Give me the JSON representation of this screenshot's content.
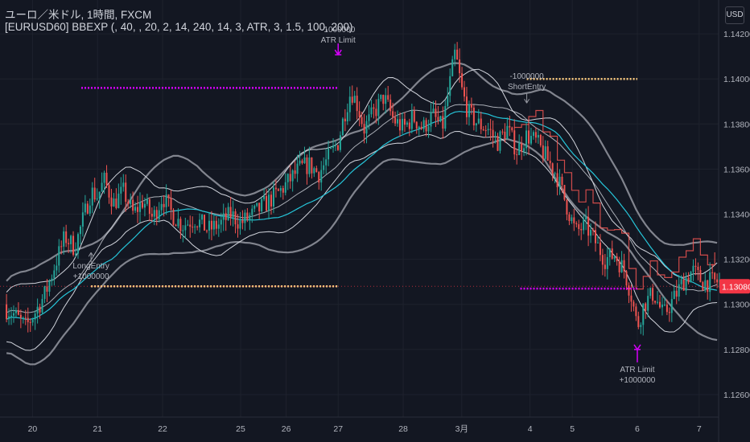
{
  "header": {
    "symbol_title": "ユーロ／米ドル, 1時間, FXCM",
    "indicator_label": "[EURUSD60] BBEXP (, 40, , 20, 2, 14, 240, 14, 3, ATR, 3, 1.5, 100, 200)",
    "currency_button": "USD"
  },
  "chart_data": {
    "type": "candlestick",
    "title": "ユーロ／米ドル, 1時間, FXCM",
    "y_ticks": [
      "1.14200",
      "1.14000",
      "1.13800",
      "1.13600",
      "1.13400",
      "1.13200",
      "1.13000",
      "1.12800",
      "1.12600"
    ],
    "y_range": [
      1.125,
      1.1435
    ],
    "x_ticks": [
      {
        "label": "20",
        "value": 0.0
      },
      {
        "label": "21",
        "value": 1.0
      },
      {
        "label": "22",
        "value": 2.0
      },
      {
        "label": "25",
        "value": 3.2
      },
      {
        "label": "26",
        "value": 3.9
      },
      {
        "label": "27",
        "value": 4.7
      },
      {
        "label": "28",
        "value": 5.7
      },
      {
        "label": "3月",
        "value": 6.6
      },
      {
        "label": "4",
        "value": 7.65
      },
      {
        "label": "5",
        "value": 8.3
      },
      {
        "label": "6",
        "value": 9.3
      },
      {
        "label": "7",
        "value": 10.25
      }
    ],
    "x_range": [
      -0.5,
      10.55
    ],
    "last_price": {
      "label": "1.13080",
      "value": 1.1308,
      "color": "#f23645"
    },
    "colors": {
      "up": "#26a69a",
      "down": "#ef5350",
      "upper_outer": "#9598a1",
      "band": "#d1d4dc",
      "mid": "#26c6da",
      "trail": "#ef5350",
      "magenta": "#d500f9",
      "orange": "#ffcc80"
    },
    "price_path": [
      [
        -0.5,
        1.13
      ],
      [
        -0.3,
        1.1296
      ],
      [
        -0.1,
        1.129
      ],
      [
        0.05,
        1.1297
      ],
      [
        0.2,
        1.1305
      ],
      [
        0.35,
        1.1318
      ],
      [
        0.5,
        1.133
      ],
      [
        0.65,
        1.1325
      ],
      [
        0.8,
        1.134
      ],
      [
        0.9,
        1.135
      ],
      [
        1.0,
        1.1348
      ],
      [
        1.1,
        1.1355
      ],
      [
        1.25,
        1.1345
      ],
      [
        1.4,
        1.135
      ],
      [
        1.55,
        1.134
      ],
      [
        1.7,
        1.1346
      ],
      [
        1.85,
        1.1338
      ],
      [
        2.0,
        1.1348
      ],
      [
        2.15,
        1.134
      ],
      [
        2.3,
        1.1335
      ],
      [
        2.5,
        1.1338
      ],
      [
        2.7,
        1.1333
      ],
      [
        2.9,
        1.1336
      ],
      [
        3.05,
        1.134
      ],
      [
        3.2,
        1.1336
      ],
      [
        3.4,
        1.134
      ],
      [
        3.6,
        1.1345
      ],
      [
        3.8,
        1.135
      ],
      [
        3.95,
        1.1355
      ],
      [
        4.1,
        1.136
      ],
      [
        4.25,
        1.1362
      ],
      [
        4.4,
        1.1358
      ],
      [
        4.55,
        1.1365
      ],
      [
        4.7,
        1.1372
      ],
      [
        4.8,
        1.1385
      ],
      [
        4.9,
        1.1395
      ],
      [
        5.0,
        1.1388
      ],
      [
        5.1,
        1.1378
      ],
      [
        5.25,
        1.1385
      ],
      [
        5.4,
        1.1392
      ],
      [
        5.55,
        1.1382
      ],
      [
        5.7,
        1.1378
      ],
      [
        5.85,
        1.1383
      ],
      [
        6.0,
        1.1378
      ],
      [
        6.15,
        1.1384
      ],
      [
        6.3,
        1.1378
      ],
      [
        6.4,
        1.1395
      ],
      [
        6.5,
        1.1412
      ],
      [
        6.6,
        1.1395
      ],
      [
        6.7,
        1.1385
      ],
      [
        6.85,
        1.138
      ],
      [
        7.0,
        1.1378
      ],
      [
        7.15,
        1.1372
      ],
      [
        7.3,
        1.1378
      ],
      [
        7.45,
        1.1368
      ],
      [
        7.6,
        1.1375
      ],
      [
        7.75,
        1.1372
      ],
      [
        7.9,
        1.1365
      ],
      [
        8.05,
        1.1358
      ],
      [
        8.2,
        1.1345
      ],
      [
        8.35,
        1.1332
      ],
      [
        8.5,
        1.1335
      ],
      [
        8.65,
        1.1328
      ],
      [
        8.8,
        1.132
      ],
      [
        8.95,
        1.1322
      ],
      [
        9.1,
        1.1315
      ],
      [
        9.2,
        1.1305
      ],
      [
        9.3,
        1.129
      ],
      [
        9.4,
        1.13
      ],
      [
        9.55,
        1.1305
      ],
      [
        9.7,
        1.1295
      ],
      [
        9.85,
        1.1302
      ],
      [
        10.0,
        1.131
      ],
      [
        10.15,
        1.1315
      ],
      [
        10.3,
        1.131
      ]
    ],
    "annotations": [
      {
        "id": "long-entry",
        "lines": [
          "LongEntry",
          "+1000000"
        ],
        "x": 0.9,
        "y": 1.1318
      },
      {
        "id": "atr-limit-top",
        "lines": [
          "-1000000",
          "ATR Limit"
        ],
        "x": 4.7,
        "y": 1.142
      },
      {
        "id": "short-entry",
        "lines": [
          "-1000000",
          "ShortEntry"
        ],
        "x": 7.6,
        "y": 1.139
      },
      {
        "id": "atr-limit-bottom",
        "lines": [
          "ATR Limit",
          "+1000000"
        ],
        "x": 9.3,
        "y": 1.1275
      }
    ],
    "level_lines": [
      {
        "id": "magenta-top",
        "color": "#d500f9",
        "y": 1.1396,
        "x": [
          0.75,
          4.7
        ]
      },
      {
        "id": "orange-left",
        "color": "#ffcc80",
        "y": 1.1308,
        "x": [
          0.9,
          4.7
        ]
      },
      {
        "id": "orange-right",
        "color": "#ffcc80",
        "y": 1.14,
        "x": [
          7.6,
          9.3
        ]
      },
      {
        "id": "magenta-right",
        "color": "#d500f9",
        "y": 1.1307,
        "x": [
          7.5,
          9.3
        ]
      }
    ]
  }
}
